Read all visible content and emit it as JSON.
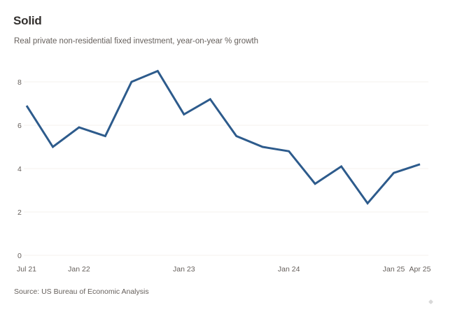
{
  "chart_data": {
    "type": "line",
    "title": "Solid",
    "subtitle": "Real private non-residential fixed investment, year-on-year % growth",
    "source": "Source: US Bureau of Economic Analysis",
    "xlabel": "",
    "ylabel": "",
    "ylim": [
      0,
      9
    ],
    "yticks": [
      0,
      2,
      4,
      6,
      8
    ],
    "grid": true,
    "line_color": "#2d5b8c",
    "x": [
      "Jul 21",
      "Oct 21",
      "Jan 22",
      "Apr 22",
      "Jul 22",
      "Oct 22",
      "Jan 23",
      "Apr 23",
      "Jul 23",
      "Oct 23",
      "Jan 24",
      "Apr 24",
      "Jul 24",
      "Oct 24",
      "Jan 25",
      "Apr 25"
    ],
    "xtick_labels": [
      {
        "label": "Jul 21",
        "index": 0
      },
      {
        "label": "Jan 22",
        "index": 2
      },
      {
        "label": "Jan 23",
        "index": 6
      },
      {
        "label": "Jan 24",
        "index": 10
      },
      {
        "label": "Jan 25",
        "index": 14
      },
      {
        "label": "Apr 25",
        "index": 15
      }
    ],
    "series": [
      {
        "name": "Real private non-residential fixed investment",
        "values": [
          6.9,
          5.0,
          5.9,
          5.5,
          8.0,
          8.5,
          6.5,
          7.2,
          5.5,
          5.0,
          4.8,
          3.3,
          4.1,
          2.4,
          3.8,
          4.2
        ]
      }
    ]
  }
}
